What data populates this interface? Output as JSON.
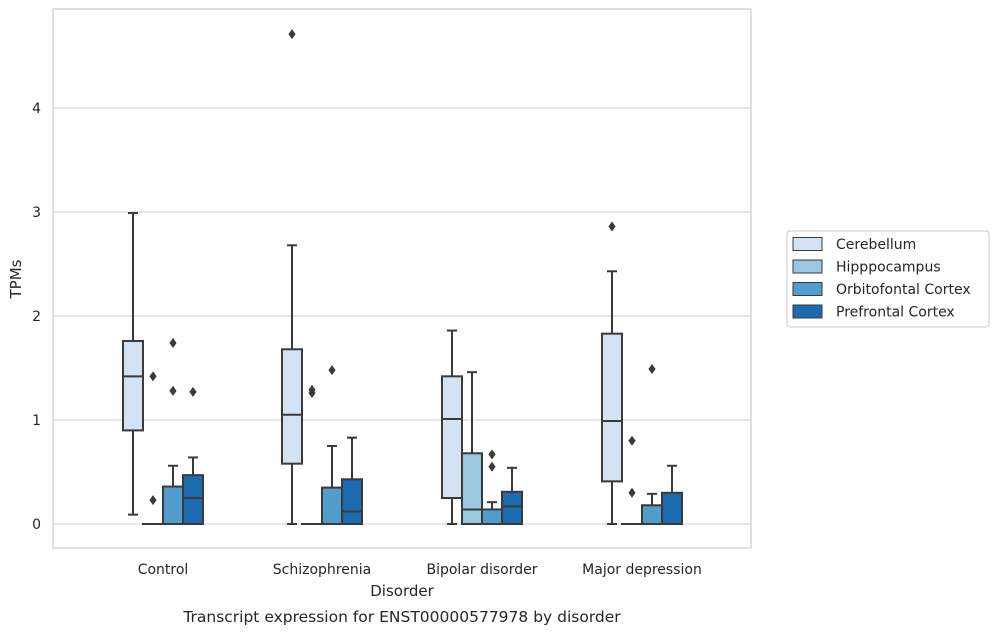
{
  "chart_data": {
    "type": "box",
    "caption": "Transcript expression for ENST00000577978 by disorder",
    "xlabel": "Disorder",
    "ylabel": "TPMs",
    "ylim": [
      -0.23,
      4.95
    ],
    "yticks": [
      0,
      1,
      2,
      3,
      4
    ],
    "grid": "horizontal",
    "legend_position": "right",
    "categories": [
      "Control",
      "Schizophrenia",
      "Bipolar disorder",
      "Major depression"
    ],
    "series": [
      {
        "name": "Cerebellum",
        "color": "#d3e3f3",
        "boxes": [
          {
            "q1": 0.9,
            "median": 1.42,
            "q3": 1.76,
            "whisker_low": 0.09,
            "whisker_high": 2.99,
            "outliers": []
          },
          {
            "q1": 0.58,
            "median": 1.05,
            "q3": 1.68,
            "whisker_low": 0.0,
            "whisker_high": 2.68,
            "outliers": [
              4.71
            ]
          },
          {
            "q1": 0.25,
            "median": 1.01,
            "q3": 1.42,
            "whisker_low": 0.0,
            "whisker_high": 1.86,
            "outliers": []
          },
          {
            "q1": 0.41,
            "median": 0.99,
            "q3": 1.83,
            "whisker_low": 0.0,
            "whisker_high": 2.43,
            "outliers": [
              2.86
            ]
          }
        ]
      },
      {
        "name": "Hipppocampus",
        "color": "#9ac8e0",
        "boxes": [
          {
            "q1": 0.0,
            "median": 0.0,
            "q3": 0.0,
            "whisker_low": 0.0,
            "whisker_high": 0.0,
            "outliers": [
              1.42,
              0.23
            ]
          },
          {
            "q1": 0.0,
            "median": 0.0,
            "q3": 0.0,
            "whisker_low": 0.0,
            "whisker_high": 0.0,
            "outliers": [
              1.29,
              1.26
            ]
          },
          {
            "q1": 0.0,
            "median": 0.14,
            "q3": 0.68,
            "whisker_low": 0.0,
            "whisker_high": 1.46,
            "outliers": []
          },
          {
            "q1": 0.0,
            "median": 0.0,
            "q3": 0.0,
            "whisker_low": 0.0,
            "whisker_high": 0.0,
            "outliers": [
              0.8,
              0.3
            ]
          }
        ]
      },
      {
        "name": "Orbitofontal Cortex",
        "color": "#529dcc",
        "boxes": [
          {
            "q1": 0.0,
            "median": 0.0,
            "q3": 0.36,
            "whisker_low": 0.0,
            "whisker_high": 0.56,
            "outliers": [
              1.74,
              1.28
            ]
          },
          {
            "q1": 0.0,
            "median": 0.0,
            "q3": 0.35,
            "whisker_low": 0.0,
            "whisker_high": 0.75,
            "outliers": [
              1.48
            ]
          },
          {
            "q1": 0.0,
            "median": 0.0,
            "q3": 0.14,
            "whisker_low": 0.0,
            "whisker_high": 0.21,
            "outliers": [
              0.67,
              0.55
            ]
          },
          {
            "q1": 0.0,
            "median": 0.0,
            "q3": 0.18,
            "whisker_low": 0.0,
            "whisker_high": 0.29,
            "outliers": [
              1.49
            ]
          }
        ]
      },
      {
        "name": "Prefrontal Cortex",
        "color": "#1c6aaf",
        "boxes": [
          {
            "q1": 0.0,
            "median": 0.25,
            "q3": 0.47,
            "whisker_low": 0.0,
            "whisker_high": 0.64,
            "outliers": [
              1.27
            ]
          },
          {
            "q1": 0.0,
            "median": 0.12,
            "q3": 0.43,
            "whisker_low": 0.0,
            "whisker_high": 0.83,
            "outliers": []
          },
          {
            "q1": 0.0,
            "median": 0.17,
            "q3": 0.31,
            "whisker_low": 0.0,
            "whisker_high": 0.54,
            "outliers": []
          },
          {
            "q1": 0.0,
            "median": 0.0,
            "q3": 0.3,
            "whisker_low": 0.0,
            "whisker_high": 0.56,
            "outliers": []
          }
        ]
      }
    ]
  }
}
